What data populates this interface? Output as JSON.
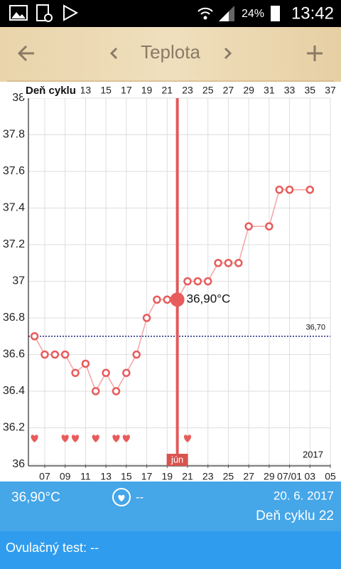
{
  "status": {
    "battery": "24%",
    "time": "13:42"
  },
  "header": {
    "title": "Teplota"
  },
  "chart_data": {
    "type": "line",
    "x_top_label": "Deň cyklu",
    "x": [
      8,
      9,
      10,
      11,
      12,
      13,
      14,
      15,
      16,
      17,
      18,
      19,
      20,
      21,
      22,
      23,
      24,
      25,
      26,
      27,
      28,
      29,
      31,
      32,
      33,
      35
    ],
    "series": [
      {
        "color": "#e85c5c",
        "line_color": "#f4a3a3",
        "values": [
          36.7,
          36.6,
          36.6,
          36.6,
          36.5,
          36.55,
          36.4,
          36.5,
          36.4,
          36.5,
          36.6,
          36.8,
          36.9,
          36.9,
          36.9,
          37.0,
          37.0,
          37.0,
          37.1,
          37.1,
          37.1,
          37.3,
          37.3,
          37.5,
          37.5,
          37.5
        ]
      }
    ],
    "xlim": [
      7.4,
      37
    ],
    "xticks_top": [
      13,
      15,
      17,
      19,
      21,
      23,
      25,
      27,
      29,
      31,
      33,
      35,
      37
    ],
    "xticks": [
      {
        "value": 9,
        "label": "07"
      },
      {
        "value": 11,
        "label": "09"
      },
      {
        "value": 13,
        "label": "11"
      },
      {
        "value": 15,
        "label": "13"
      },
      {
        "value": 17,
        "label": "15"
      },
      {
        "value": 19,
        "label": "17"
      },
      {
        "value": 21,
        "label": "19"
      },
      {
        "value": 23,
        "label": "21"
      },
      {
        "value": 25,
        "label": "23"
      },
      {
        "value": 27,
        "label": "25"
      },
      {
        "value": 29,
        "label": "27"
      },
      {
        "value": 31,
        "label": "29"
      },
      {
        "value": 33,
        "label": "07/01"
      },
      {
        "value": 35,
        "label": "03"
      },
      {
        "value": 37,
        "label": "05"
      }
    ],
    "ylim": [
      36,
      38
    ],
    "yticks": [
      36,
      36.2,
      36.4,
      36.6,
      36.8,
      37,
      37.2,
      37.4,
      37.6,
      37.8,
      38
    ],
    "grid": true,
    "reference_line": {
      "value": 36.7,
      "label": "36,70"
    },
    "heart_days": [
      8,
      11,
      12,
      14,
      16,
      17,
      23
    ],
    "selected": {
      "x": 22,
      "value": 36.9,
      "label": "36,90°C",
      "month_label": "jún"
    },
    "year_label": "2017"
  },
  "footer": {
    "temperature": "36,90°C",
    "note": "--",
    "date": "20. 6. 2017",
    "cycle_day": "Deň cyklu 22",
    "ovulation_test": "Ovulačný test: --"
  }
}
